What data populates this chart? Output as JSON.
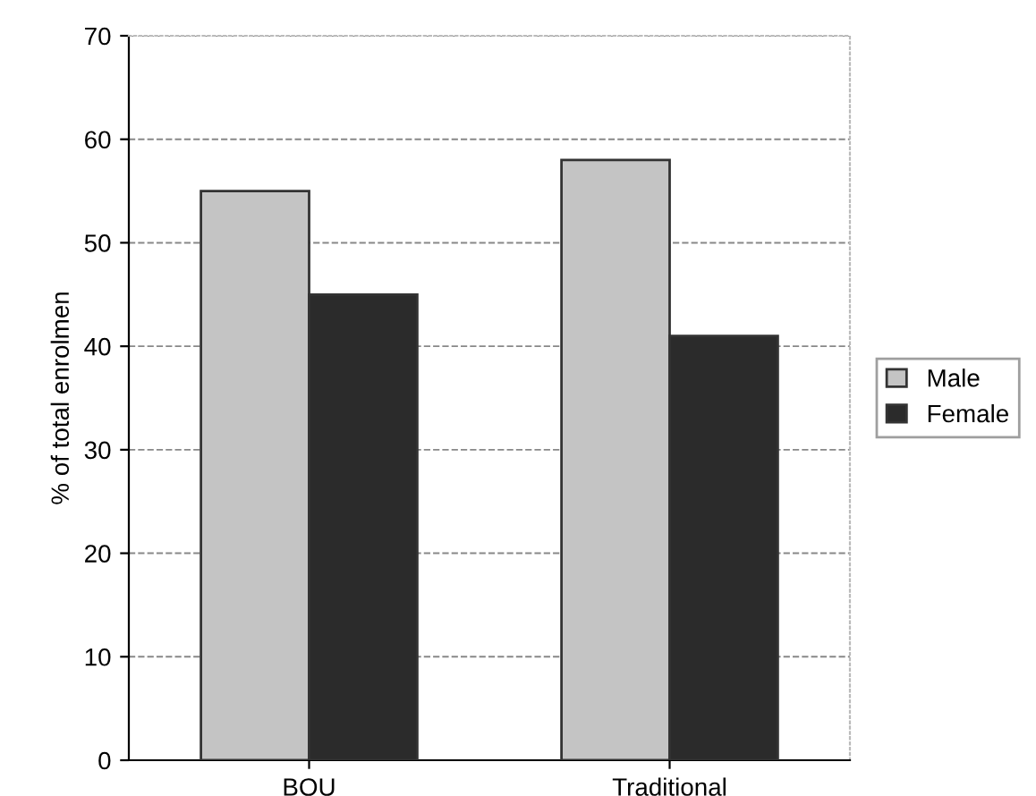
{
  "chart_data": {
    "type": "bar",
    "categories": [
      "BOU",
      "Traditional"
    ],
    "ylabel": "% of total enrolmen",
    "series": [
      {
        "name": "Male",
        "color": "#c4c4c4",
        "values": [
          55,
          58
        ]
      },
      {
        "name": "Female",
        "color": "#2b2b2b",
        "values": [
          45,
          41
        ]
      }
    ],
    "ylim": [
      0,
      70
    ],
    "yticks": [
      0,
      10,
      20,
      30,
      40,
      50,
      60,
      70
    ],
    "grid": "y",
    "legend": "right"
  }
}
